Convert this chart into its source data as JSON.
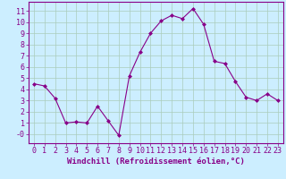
{
  "x": [
    0,
    1,
    2,
    3,
    4,
    5,
    6,
    7,
    8,
    9,
    10,
    11,
    12,
    13,
    14,
    15,
    16,
    17,
    18,
    19,
    20,
    21,
    22,
    23
  ],
  "y": [
    4.5,
    4.3,
    3.2,
    1.0,
    1.1,
    1.0,
    2.5,
    1.2,
    -0.1,
    5.2,
    7.3,
    9.0,
    10.1,
    10.6,
    10.3,
    11.2,
    9.8,
    6.5,
    6.3,
    4.7,
    3.3,
    3.0,
    3.6,
    3.0
  ],
  "line_color": "#880088",
  "marker": "D",
  "marker_size": 2,
  "bg_color": "#cceeff",
  "grid_color": "#aaccbb",
  "xlabel": "Windchill (Refroidissement éolien,°C)",
  "xlabel_fontsize": 6.5,
  "xlabel_color": "#880088",
  "ylabel_ticks": [
    0,
    1,
    2,
    3,
    4,
    5,
    6,
    7,
    8,
    9,
    10,
    11
  ],
  "ytick_labels": [
    "-0",
    "1",
    "2",
    "3",
    "4",
    "5",
    "6",
    "7",
    "8",
    "9",
    "10",
    "11"
  ],
  "xlim": [
    -0.5,
    23.5
  ],
  "ylim": [
    -0.8,
    11.8
  ],
  "xtick_labels": [
    "0",
    "1",
    "2",
    "3",
    "4",
    "5",
    "6",
    "7",
    "8",
    "9",
    "10",
    "11",
    "12",
    "13",
    "14",
    "15",
    "16",
    "17",
    "18",
    "19",
    "20",
    "21",
    "22",
    "23"
  ],
  "tick_color": "#880088",
  "tick_fontsize": 6,
  "spine_color": "#880088"
}
